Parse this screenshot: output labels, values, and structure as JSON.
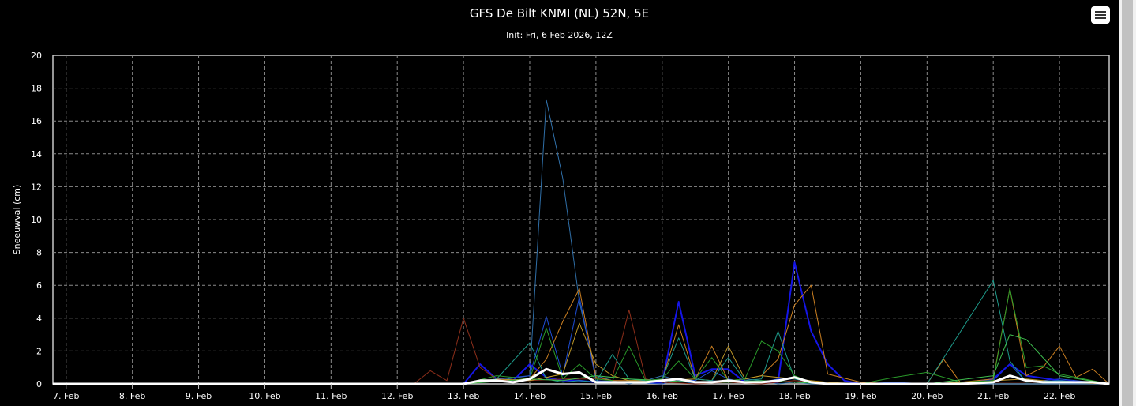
{
  "chart_data": {
    "type": "line",
    "title": "GFS De Bilt KNMI (NL) 52N, 5E",
    "subtitle": "Init: Fri, 6 Feb 2026, 12Z",
    "ylabel": "Sneeuwval (cm)",
    "ylim": [
      0,
      20
    ],
    "yticks": [
      0,
      2,
      4,
      6,
      8,
      10,
      12,
      14,
      16,
      18,
      20
    ],
    "xticks": [
      "7. Feb",
      "8. Feb",
      "9. Feb",
      "10. Feb",
      "11. Feb",
      "12. Feb",
      "13. Feb",
      "14. Feb",
      "15. Feb",
      "16. Feb",
      "17. Feb",
      "18. Feb",
      "19. Feb",
      "20. Feb",
      "21. Feb",
      "22. Feb"
    ],
    "xrange_days": [
      6.8,
      22.75
    ],
    "grid": true,
    "series": [
      {
        "color": "#2f6fa8",
        "width": 1,
        "x": [
          6.8,
          13,
          13.5,
          14,
          14.25,
          14.5,
          14.75,
          15,
          15.25,
          15.5,
          15.75,
          16,
          16.25,
          16.5,
          16.75,
          17,
          17.25,
          17.5,
          17.75,
          18,
          18.25,
          18.5,
          19,
          19.5,
          20,
          21,
          21.5,
          22,
          22.5,
          22.75
        ],
        "y": [
          0,
          0,
          0.2,
          0.5,
          17.3,
          12.5,
          5,
          0.5,
          0.2,
          0,
          0.2,
          0.5,
          0.2,
          0,
          0.2,
          0.1,
          0.3,
          0.2,
          0,
          0.1,
          0,
          0,
          0,
          0,
          0,
          0,
          0,
          0,
          0,
          0
        ]
      },
      {
        "color": "#1f4fd8",
        "width": 1,
        "x": [
          6.8,
          13,
          13.25,
          13.5,
          14,
          14.25,
          14.5,
          14.75,
          15,
          16,
          16.25,
          16.5,
          16.75,
          17,
          17.25,
          17.5,
          17.75,
          18,
          18.25,
          18.5,
          19,
          19.5,
          20,
          20.5,
          21,
          21.25,
          21.5,
          22,
          22.75
        ],
        "y": [
          0,
          0,
          1.2,
          0.3,
          0.5,
          4.1,
          0.5,
          5.3,
          0.2,
          0,
          0.3,
          0.2,
          0.8,
          0.3,
          0.1,
          0.1,
          0.3,
          0.3,
          0.1,
          0,
          0,
          0.1,
          0,
          0.1,
          0.2,
          1.2,
          0.1,
          0.3,
          0
        ]
      },
      {
        "color": "#1515e6",
        "width": 2,
        "x": [
          6.8,
          13,
          13.25,
          13.5,
          13.75,
          14,
          14.25,
          14.5,
          14.75,
          15,
          15.5,
          16,
          16.25,
          16.5,
          16.75,
          17,
          17.25,
          17.5,
          17.75,
          18,
          18.25,
          18.5,
          18.75,
          19,
          19.5,
          20,
          20.5,
          21,
          21.25,
          21.5,
          22,
          22.75
        ],
        "y": [
          0,
          0,
          1.2,
          0.3,
          0.2,
          1.2,
          0.4,
          0.2,
          0.2,
          0.1,
          0.1,
          0.1,
          5,
          0.5,
          0.9,
          0.9,
          0.1,
          0.1,
          0.1,
          7.4,
          3.2,
          1.2,
          0.2,
          0,
          0,
          0,
          0,
          0.3,
          1.2,
          0.5,
          0.2,
          0
        ]
      },
      {
        "color": "#cc8022",
        "width": 1,
        "x": [
          6.8,
          13,
          13.5,
          14,
          14.25,
          14.5,
          14.75,
          15,
          15.25,
          15.5,
          16,
          16.25,
          16.5,
          16.75,
          17,
          17.25,
          17.5,
          17.75,
          18,
          18.25,
          18.5,
          19,
          19.5,
          20,
          20.25,
          20.5,
          21,
          21.25,
          21.5,
          21.75,
          22,
          22.25,
          22.5,
          22.75
        ],
        "y": [
          0,
          0,
          0.2,
          0.3,
          1.5,
          3.8,
          5.8,
          0.4,
          0.2,
          0.2,
          0.2,
          3.6,
          0.3,
          2.3,
          0.2,
          0.3,
          0.5,
          1.5,
          4.8,
          6,
          0.6,
          0.1,
          0,
          0,
          1.5,
          0.1,
          0.3,
          5.8,
          0.5,
          1,
          2.3,
          0.4,
          0.9,
          0
        ]
      },
      {
        "color": "#8c2e1a",
        "width": 1,
        "x": [
          6.8,
          12.25,
          12.5,
          12.75,
          13,
          13.25,
          13.5,
          13.75,
          14,
          14.5,
          15,
          15.25,
          15.5,
          15.75,
          16,
          16.5,
          17,
          17.5,
          18,
          18.5,
          19,
          20,
          21,
          22,
          22.75
        ],
        "y": [
          0,
          0,
          0.8,
          0.2,
          4,
          1,
          0.3,
          0.2,
          0.2,
          0.3,
          0.3,
          0.4,
          4.5,
          0.3,
          0.1,
          0,
          0.1,
          0,
          0.2,
          0,
          0,
          0,
          0.1,
          0.1,
          0
        ]
      },
      {
        "color": "#c29a28",
        "width": 1,
        "x": [
          6.8,
          13,
          13.5,
          14,
          14.25,
          14.5,
          14.75,
          15,
          15.25,
          15.5,
          16,
          16.5,
          16.75,
          17,
          17.25,
          17.5,
          18,
          18.5,
          19,
          20,
          21,
          21.5,
          22,
          22.75
        ],
        "y": [
          0,
          0,
          0.3,
          0.2,
          0.4,
          0.6,
          3.7,
          1.2,
          0.5,
          0.2,
          0.2,
          0.3,
          0.2,
          2.3,
          0.3,
          0.5,
          0.3,
          0.1,
          0,
          0,
          0.2,
          0.3,
          0.1,
          0
        ]
      },
      {
        "color": "#1e9a8a",
        "width": 1,
        "x": [
          6.8,
          13,
          13.5,
          14,
          14.25,
          14.5,
          14.75,
          15,
          15.25,
          15.5,
          15.75,
          16,
          16.25,
          16.5,
          16.75,
          17,
          17.25,
          17.5,
          17.75,
          18,
          18.25,
          18.5,
          19,
          20,
          21,
          21.25,
          21.5,
          22,
          22.75
        ],
        "y": [
          0,
          0,
          0.3,
          2.5,
          0.3,
          0.1,
          0.2,
          0.1,
          1.8,
          0.3,
          0.2,
          0.3,
          2.8,
          0.3,
          0.2,
          1.6,
          0.2,
          0.3,
          3.2,
          0.3,
          0.1,
          0,
          0,
          0,
          6.3,
          1.4,
          0.1,
          0.2,
          0
        ]
      },
      {
        "color": "#2a9a2a",
        "width": 1,
        "x": [
          6.8,
          13,
          13.5,
          14,
          14.25,
          14.5,
          14.75,
          15,
          15.25,
          15.5,
          15.75,
          16,
          16.25,
          16.5,
          16.75,
          17,
          17.25,
          17.5,
          17.75,
          18,
          18.25,
          18.5,
          19,
          19.5,
          20,
          20.5,
          21,
          21.25,
          21.5,
          21.75,
          22,
          22.25,
          22.75
        ],
        "y": [
          0,
          0,
          0.5,
          0.3,
          3.4,
          0.3,
          1.2,
          0.3,
          0.2,
          2.3,
          0.2,
          0.3,
          1.4,
          0.3,
          1.6,
          0.2,
          0.3,
          2.6,
          2,
          0.5,
          0.1,
          0,
          0,
          0.4,
          0.7,
          0.1,
          0.2,
          5.8,
          1,
          1.1,
          0.6,
          0.4,
          0
        ]
      },
      {
        "color": "#3fbf4f",
        "width": 1,
        "x": [
          6.8,
          13,
          14,
          14.5,
          15,
          15.5,
          16,
          16.5,
          17,
          17.5,
          18,
          18.5,
          19,
          20,
          21,
          21.25,
          21.5,
          22,
          22.75
        ],
        "y": [
          0,
          0,
          0.3,
          0.2,
          0.5,
          0.3,
          0.2,
          0.1,
          0.1,
          0.2,
          0.1,
          0,
          0,
          0,
          0.5,
          3,
          2.7,
          0.5,
          0
        ]
      },
      {
        "color": "#ffffff",
        "width": 3,
        "x": [
          6.8,
          13,
          13.25,
          13.5,
          13.75,
          14,
          14.25,
          14.5,
          14.75,
          15,
          15.25,
          15.5,
          15.75,
          16,
          16.25,
          16.5,
          16.75,
          17,
          17.25,
          17.5,
          17.75,
          18,
          18.25,
          18.5,
          18.75,
          19,
          19.5,
          20,
          20.5,
          21,
          21.25,
          21.5,
          21.75,
          22,
          22.25,
          22.5,
          22.75
        ],
        "y": [
          0,
          0,
          0.2,
          0.2,
          0.1,
          0.3,
          0.9,
          0.6,
          0.7,
          0.1,
          0.1,
          0.1,
          0.1,
          0.2,
          0.3,
          0.1,
          0.1,
          0.2,
          0.1,
          0.1,
          0.2,
          0.4,
          0.1,
          0,
          0,
          0,
          0,
          0,
          0,
          0.1,
          0.5,
          0.2,
          0.1,
          0.1,
          0.1,
          0.1,
          0
        ]
      }
    ]
  },
  "toolbar": {
    "menu_icon": "hamburger-menu-icon"
  }
}
